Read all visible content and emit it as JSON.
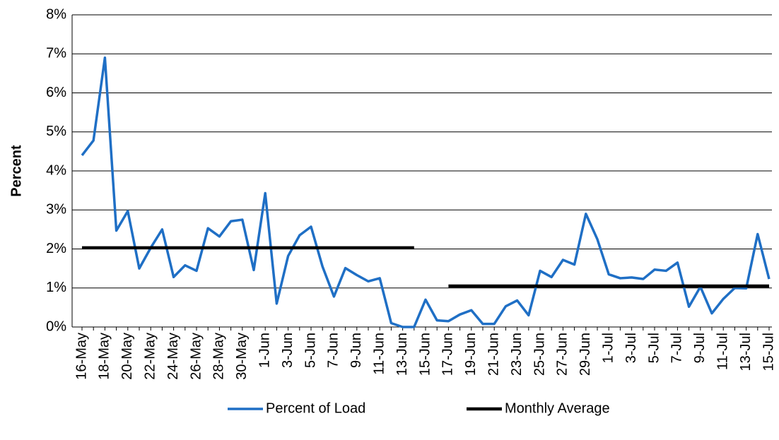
{
  "chart_data": {
    "type": "line",
    "y_label": "Percent",
    "categories": [
      "16-May",
      null,
      "18-May",
      null,
      "20-May",
      null,
      "22-May",
      null,
      "24-May",
      null,
      "26-May",
      null,
      "28-May",
      null,
      "30-May",
      null,
      "1-Jun",
      null,
      "3-Jun",
      null,
      "5-Jun",
      null,
      "7-Jun",
      null,
      "9-Jun",
      null,
      "11-Jun",
      null,
      "13-Jun",
      null,
      "15-Jun",
      null,
      "17-Jun",
      null,
      "19-Jun",
      null,
      "21-Jun",
      null,
      "23-Jun",
      null,
      "25-Jun",
      null,
      "27-Jun",
      null,
      "29-Jun",
      null,
      "1-Jul",
      null,
      "3-Jul",
      null,
      "5-Jul",
      null,
      "7-Jul",
      null,
      "9-Jul",
      null,
      "11-Jul",
      null,
      "13-Jul",
      null,
      "15-Jul"
    ],
    "series": [
      {
        "name": "Percent of Load",
        "color": "#1f6fc5",
        "values": [
          4.4,
          4.78,
          6.9,
          2.47,
          2.97,
          1.5,
          2.03,
          2.5,
          1.28,
          1.58,
          1.44,
          2.53,
          2.32,
          2.71,
          2.75,
          1.46,
          3.43,
          0.6,
          1.82,
          2.35,
          2.57,
          1.55,
          0.78,
          1.51,
          1.33,
          1.17,
          1.25,
          0.1,
          0.0,
          0.0,
          0.7,
          0.17,
          0.15,
          0.32,
          0.43,
          0.08,
          0.08,
          0.53,
          0.68,
          0.3,
          1.44,
          1.28,
          1.72,
          1.6,
          2.9,
          2.25,
          1.35,
          1.25,
          1.27,
          1.23,
          1.47,
          1.44,
          1.65,
          0.52,
          1.03,
          0.35,
          0.72,
          1.0,
          0.99,
          2.38,
          1.23
        ]
      },
      {
        "name": "Monthly Average",
        "color": "#000000",
        "values": [
          2.03,
          2.03,
          2.03,
          2.03,
          2.03,
          2.03,
          2.03,
          2.03,
          2.03,
          2.03,
          2.03,
          2.03,
          2.03,
          2.03,
          2.03,
          2.03,
          2.03,
          2.03,
          2.03,
          2.03,
          2.03,
          2.03,
          2.03,
          2.03,
          2.03,
          2.03,
          2.03,
          2.03,
          2.03,
          2.03,
          null,
          null,
          1.05,
          1.05,
          1.05,
          1.05,
          1.05,
          1.05,
          1.05,
          1.05,
          1.05,
          1.05,
          1.05,
          1.05,
          1.05,
          1.05,
          1.05,
          1.05,
          1.05,
          1.05,
          1.05,
          1.05,
          1.05,
          1.05,
          1.05,
          1.05,
          1.05,
          1.05,
          1.05,
          1.05,
          1.05
        ]
      }
    ],
    "ylim": [
      0,
      8
    ],
    "yticks": [
      {
        "value": 0,
        "label": "0%"
      },
      {
        "value": 1,
        "label": "1%"
      },
      {
        "value": 2,
        "label": "2%"
      },
      {
        "value": 3,
        "label": "3%"
      },
      {
        "value": 4,
        "label": "4%"
      },
      {
        "value": 5,
        "label": "5%"
      },
      {
        "value": 6,
        "label": "6%"
      },
      {
        "value": 7,
        "label": "7%"
      },
      {
        "value": 8,
        "label": "8%"
      }
    ],
    "grid": true,
    "legend": "bottom"
  }
}
